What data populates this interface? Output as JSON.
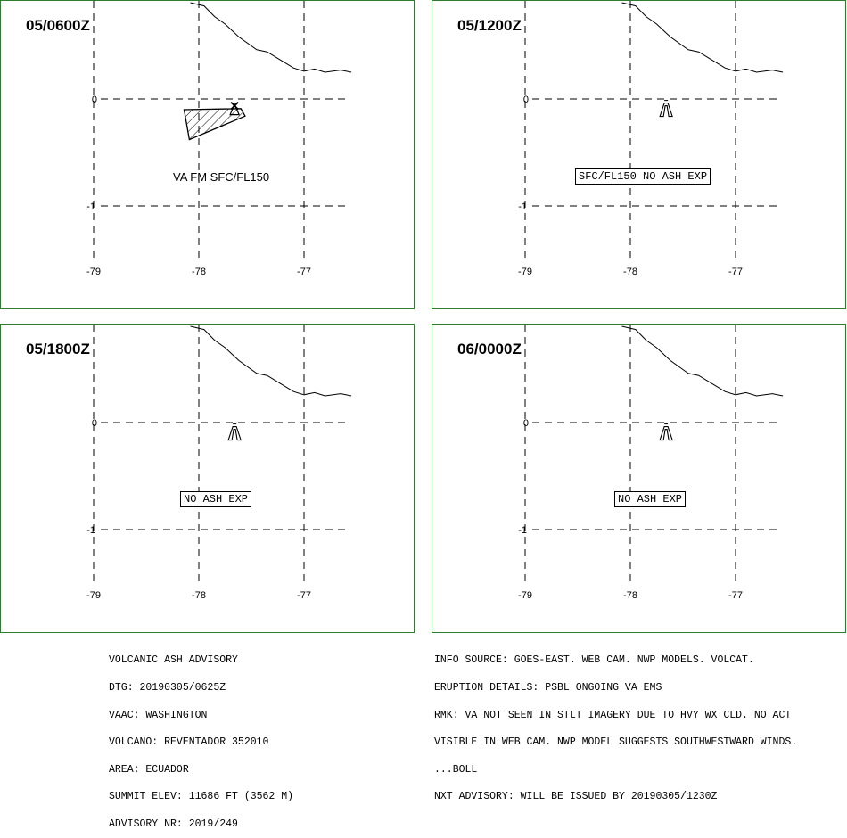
{
  "panels": [
    {
      "time": "05/0600Z",
      "label": "VA FM SFC/FL150",
      "label_boxed": false,
      "ash_polygon": [
        [
          -78.14,
          -0.1
        ],
        [
          -77.6,
          -0.09
        ],
        [
          -77.56,
          -0.16
        ],
        [
          -78.09,
          -0.38
        ]
      ],
      "volcano_style": "x-marker"
    },
    {
      "time": "05/1200Z",
      "label": "SFC/FL150 NO ASH EXP",
      "label_boxed": true,
      "ash_polygon": [],
      "volcano_style": "bell"
    },
    {
      "time": "05/1800Z",
      "label": "NO ASH EXP",
      "label_boxed": true,
      "ash_polygon": [],
      "volcano_style": "bell"
    },
    {
      "time": "06/0000Z",
      "label": "NO ASH EXP",
      "label_boxed": true,
      "ash_polygon": [],
      "volcano_style": "bell"
    }
  ],
  "map": {
    "lon_ticks": [
      "-79",
      "-78",
      "-77"
    ],
    "lat_ticks": [
      "0",
      "-1"
    ],
    "lon_values": [
      -79,
      -78,
      -77
    ],
    "lat_values": [
      0,
      -1
    ],
    "volcano": {
      "lon": -77.66,
      "lat": -0.08
    },
    "coastline": [
      [
        -78.08,
        0.9
      ],
      [
        -77.95,
        0.87
      ],
      [
        -77.85,
        0.77
      ],
      [
        -77.75,
        0.7
      ],
      [
        -77.62,
        0.58
      ],
      [
        -77.45,
        0.46
      ],
      [
        -77.35,
        0.44
      ],
      [
        -77.25,
        0.38
      ],
      [
        -77.1,
        0.29
      ],
      [
        -77.0,
        0.26
      ],
      [
        -76.9,
        0.28
      ],
      [
        -76.8,
        0.25
      ],
      [
        -76.65,
        0.27
      ],
      [
        -76.55,
        0.25
      ]
    ],
    "grid_color": "#000000",
    "border_color": "#2e7d2e"
  },
  "footer_left": [
    "VOLCANIC ASH ADVISORY",
    "DTG: 20190305/0625Z",
    "VAAC: WASHINGTON",
    "VOLCANO: REVENTADOR 352010",
    "AREA: ECUADOR",
    "SUMMIT ELEV: 11686 FT (3562 M)",
    "ADVISORY NR: 2019/249"
  ],
  "footer_right": [
    "INFO SOURCE: GOES-EAST. WEB CAM. NWP MODELS. VOLCAT.",
    "ERUPTION DETAILS: PSBL ONGOING VA EMS",
    "RMK: VA NOT SEEN IN STLT IMAGERY DUE TO HVY WX CLD. NO ACT",
    "VISIBLE IN WEB CAM. NWP MODEL SUGGESTS SOUTHWESTWARD WINDS.",
    "...BOLL",
    "NXT ADVISORY: WILL BE ISSUED BY 20190305/1230Z"
  ]
}
